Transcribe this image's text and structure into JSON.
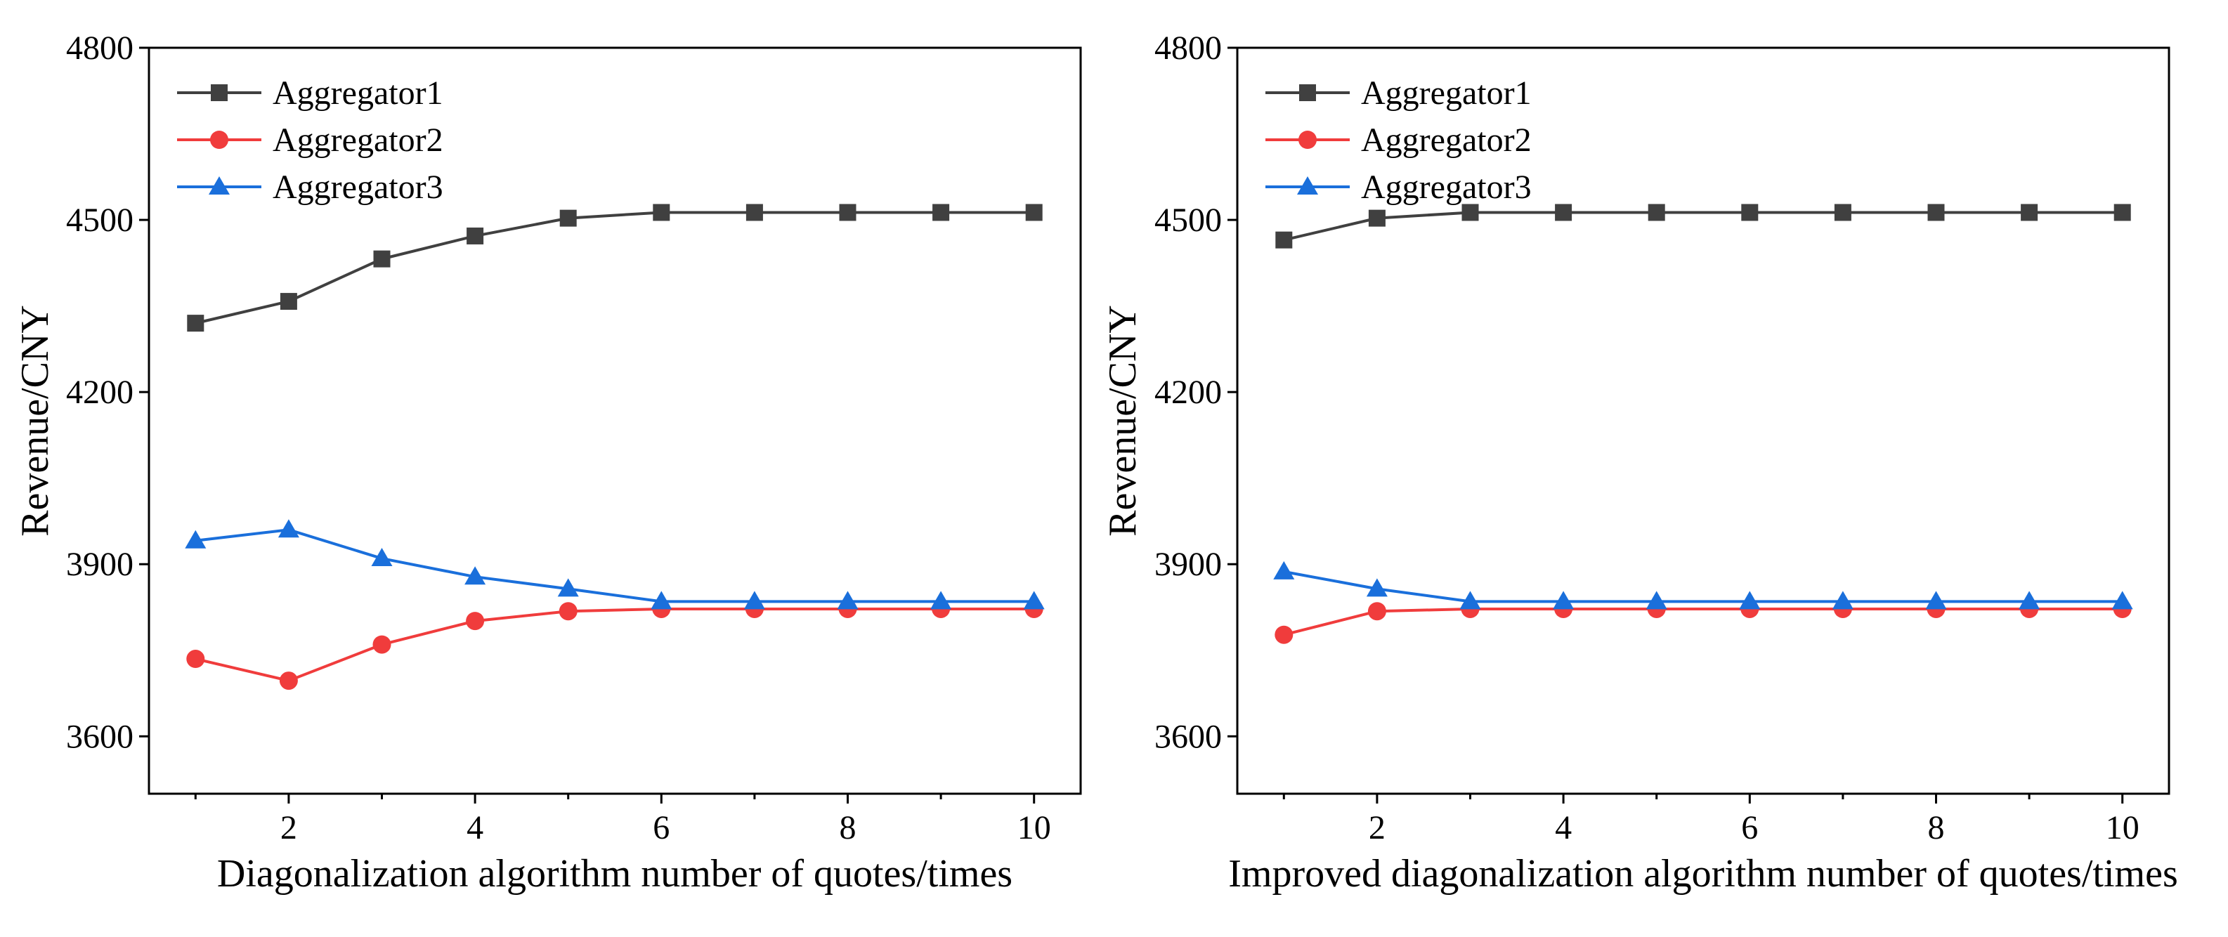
{
  "chart_data": [
    {
      "type": "line",
      "title": "",
      "xlabel": "Diagonalization algorithm number of quotes/times",
      "ylabel": "Revenue/CNY",
      "x": [
        1,
        2,
        3,
        4,
        5,
        6,
        7,
        8,
        9,
        10
      ],
      "xticks": [
        2,
        4,
        6,
        8,
        10
      ],
      "xlim": [
        0.5,
        10.5
      ],
      "yticks": [
        3600,
        3900,
        4200,
        4500,
        4800
      ],
      "ylim": [
        3500,
        4800
      ],
      "grid": false,
      "legend_position": "top-left",
      "series": [
        {
          "name": "Aggregator1",
          "color": "#404040",
          "marker": "square",
          "values": [
            4320,
            4358,
            4432,
            4472,
            4503,
            4513,
            4513,
            4513,
            4513,
            4513
          ]
        },
        {
          "name": "Aggregator2",
          "color": "#f03c3c",
          "marker": "circle",
          "values": [
            3735,
            3697,
            3760,
            3801,
            3818,
            3822,
            3822,
            3822,
            3822,
            3822
          ]
        },
        {
          "name": "Aggregator3",
          "color": "#1a6fdb",
          "marker": "triangle",
          "values": [
            3941,
            3960,
            3910,
            3878,
            3857,
            3835,
            3835,
            3835,
            3835,
            3835
          ]
        }
      ]
    },
    {
      "type": "line",
      "title": "",
      "xlabel": "Improved diagonalization algorithm number of quotes/times",
      "ylabel": "Revenue/CNY",
      "x": [
        1,
        2,
        3,
        4,
        5,
        6,
        7,
        8,
        9,
        10
      ],
      "xticks": [
        2,
        4,
        6,
        8,
        10
      ],
      "xlim": [
        0.5,
        10.5
      ],
      "yticks": [
        3600,
        3900,
        4200,
        4500,
        4800
      ],
      "ylim": [
        3500,
        4800
      ],
      "grid": false,
      "legend_position": "top-left",
      "series": [
        {
          "name": "Aggregator1",
          "color": "#404040",
          "marker": "square",
          "values": [
            4465,
            4503,
            4513,
            4513,
            4513,
            4513,
            4513,
            4513,
            4513,
            4513
          ]
        },
        {
          "name": "Aggregator2",
          "color": "#f03c3c",
          "marker": "circle",
          "values": [
            3777,
            3818,
            3822,
            3822,
            3822,
            3822,
            3822,
            3822,
            3822,
            3822
          ]
        },
        {
          "name": "Aggregator3",
          "color": "#1a6fdb",
          "marker": "triangle",
          "values": [
            3887,
            3857,
            3835,
            3835,
            3835,
            3835,
            3835,
            3835,
            3835,
            3835
          ]
        }
      ]
    }
  ]
}
